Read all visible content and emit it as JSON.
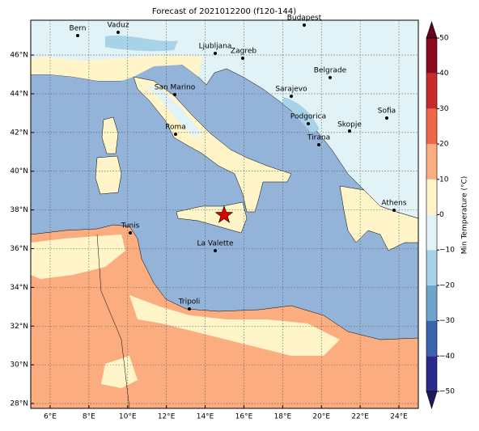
{
  "chart_data": {
    "type": "map",
    "title": "Forecast of 2021012200 (f120-144)",
    "xlim": [
      5,
      25
    ],
    "ylim": [
      27.75,
      47.8
    ],
    "xticks": [
      {
        "value": 6,
        "label": "6°E"
      },
      {
        "value": 8,
        "label": "8°E"
      },
      {
        "value": 10,
        "label": "10°E"
      },
      {
        "value": 12,
        "label": "12°E"
      },
      {
        "value": 14,
        "label": "14°E"
      },
      {
        "value": 16,
        "label": "16°E"
      },
      {
        "value": 18,
        "label": "18°E"
      },
      {
        "value": 20,
        "label": "20°E"
      },
      {
        "value": 22,
        "label": "22°E"
      },
      {
        "value": 24,
        "label": "24°E"
      }
    ],
    "yticks": [
      {
        "value": 28,
        "label": "28°N"
      },
      {
        "value": 30,
        "label": "30°N"
      },
      {
        "value": 32,
        "label": "32°N"
      },
      {
        "value": 34,
        "label": "34°N"
      },
      {
        "value": 36,
        "label": "36°N"
      },
      {
        "value": 38,
        "label": "38°N"
      },
      {
        "value": 40,
        "label": "40°N"
      },
      {
        "value": 42,
        "label": "42°N"
      },
      {
        "value": 44,
        "label": "44°N"
      },
      {
        "value": 46,
        "label": "46°N"
      }
    ],
    "grid": true,
    "cities": [
      "Bern",
      "Vaduz",
      "Budapest",
      "Ljubljana",
      "Zagreb",
      "Belgrade",
      "San Marino",
      "Sarajevo",
      "Sofia",
      "Roma",
      "Podgorica",
      "Skopje",
      "Tirana",
      "Athens",
      "Tunis",
      "La Valette",
      "Tripoli"
    ],
    "colorbar": {
      "label": "Min Temperature (°C)",
      "lim": [
        -50,
        50
      ],
      "ticks": [
        {
          "value": -50,
          "label": "−50"
        },
        {
          "value": -40,
          "label": "−40"
        },
        {
          "value": -30,
          "label": "−30"
        },
        {
          "value": -20,
          "label": "−20"
        },
        {
          "value": -10,
          "label": "−10"
        },
        0,
        10,
        20,
        30,
        40,
        50
      ],
      "colors": [
        "#2a2a8e",
        "#3c64ae",
        "#6fa5cd",
        "#a7d2e7",
        "#e2f3f7",
        "#fff5c8",
        "#fbad80",
        "#ef6747",
        "#c72a2a",
        "#8b0a1f"
      ],
      "under": "#1e1a5e",
      "over": "#67001f"
    }
  }
}
